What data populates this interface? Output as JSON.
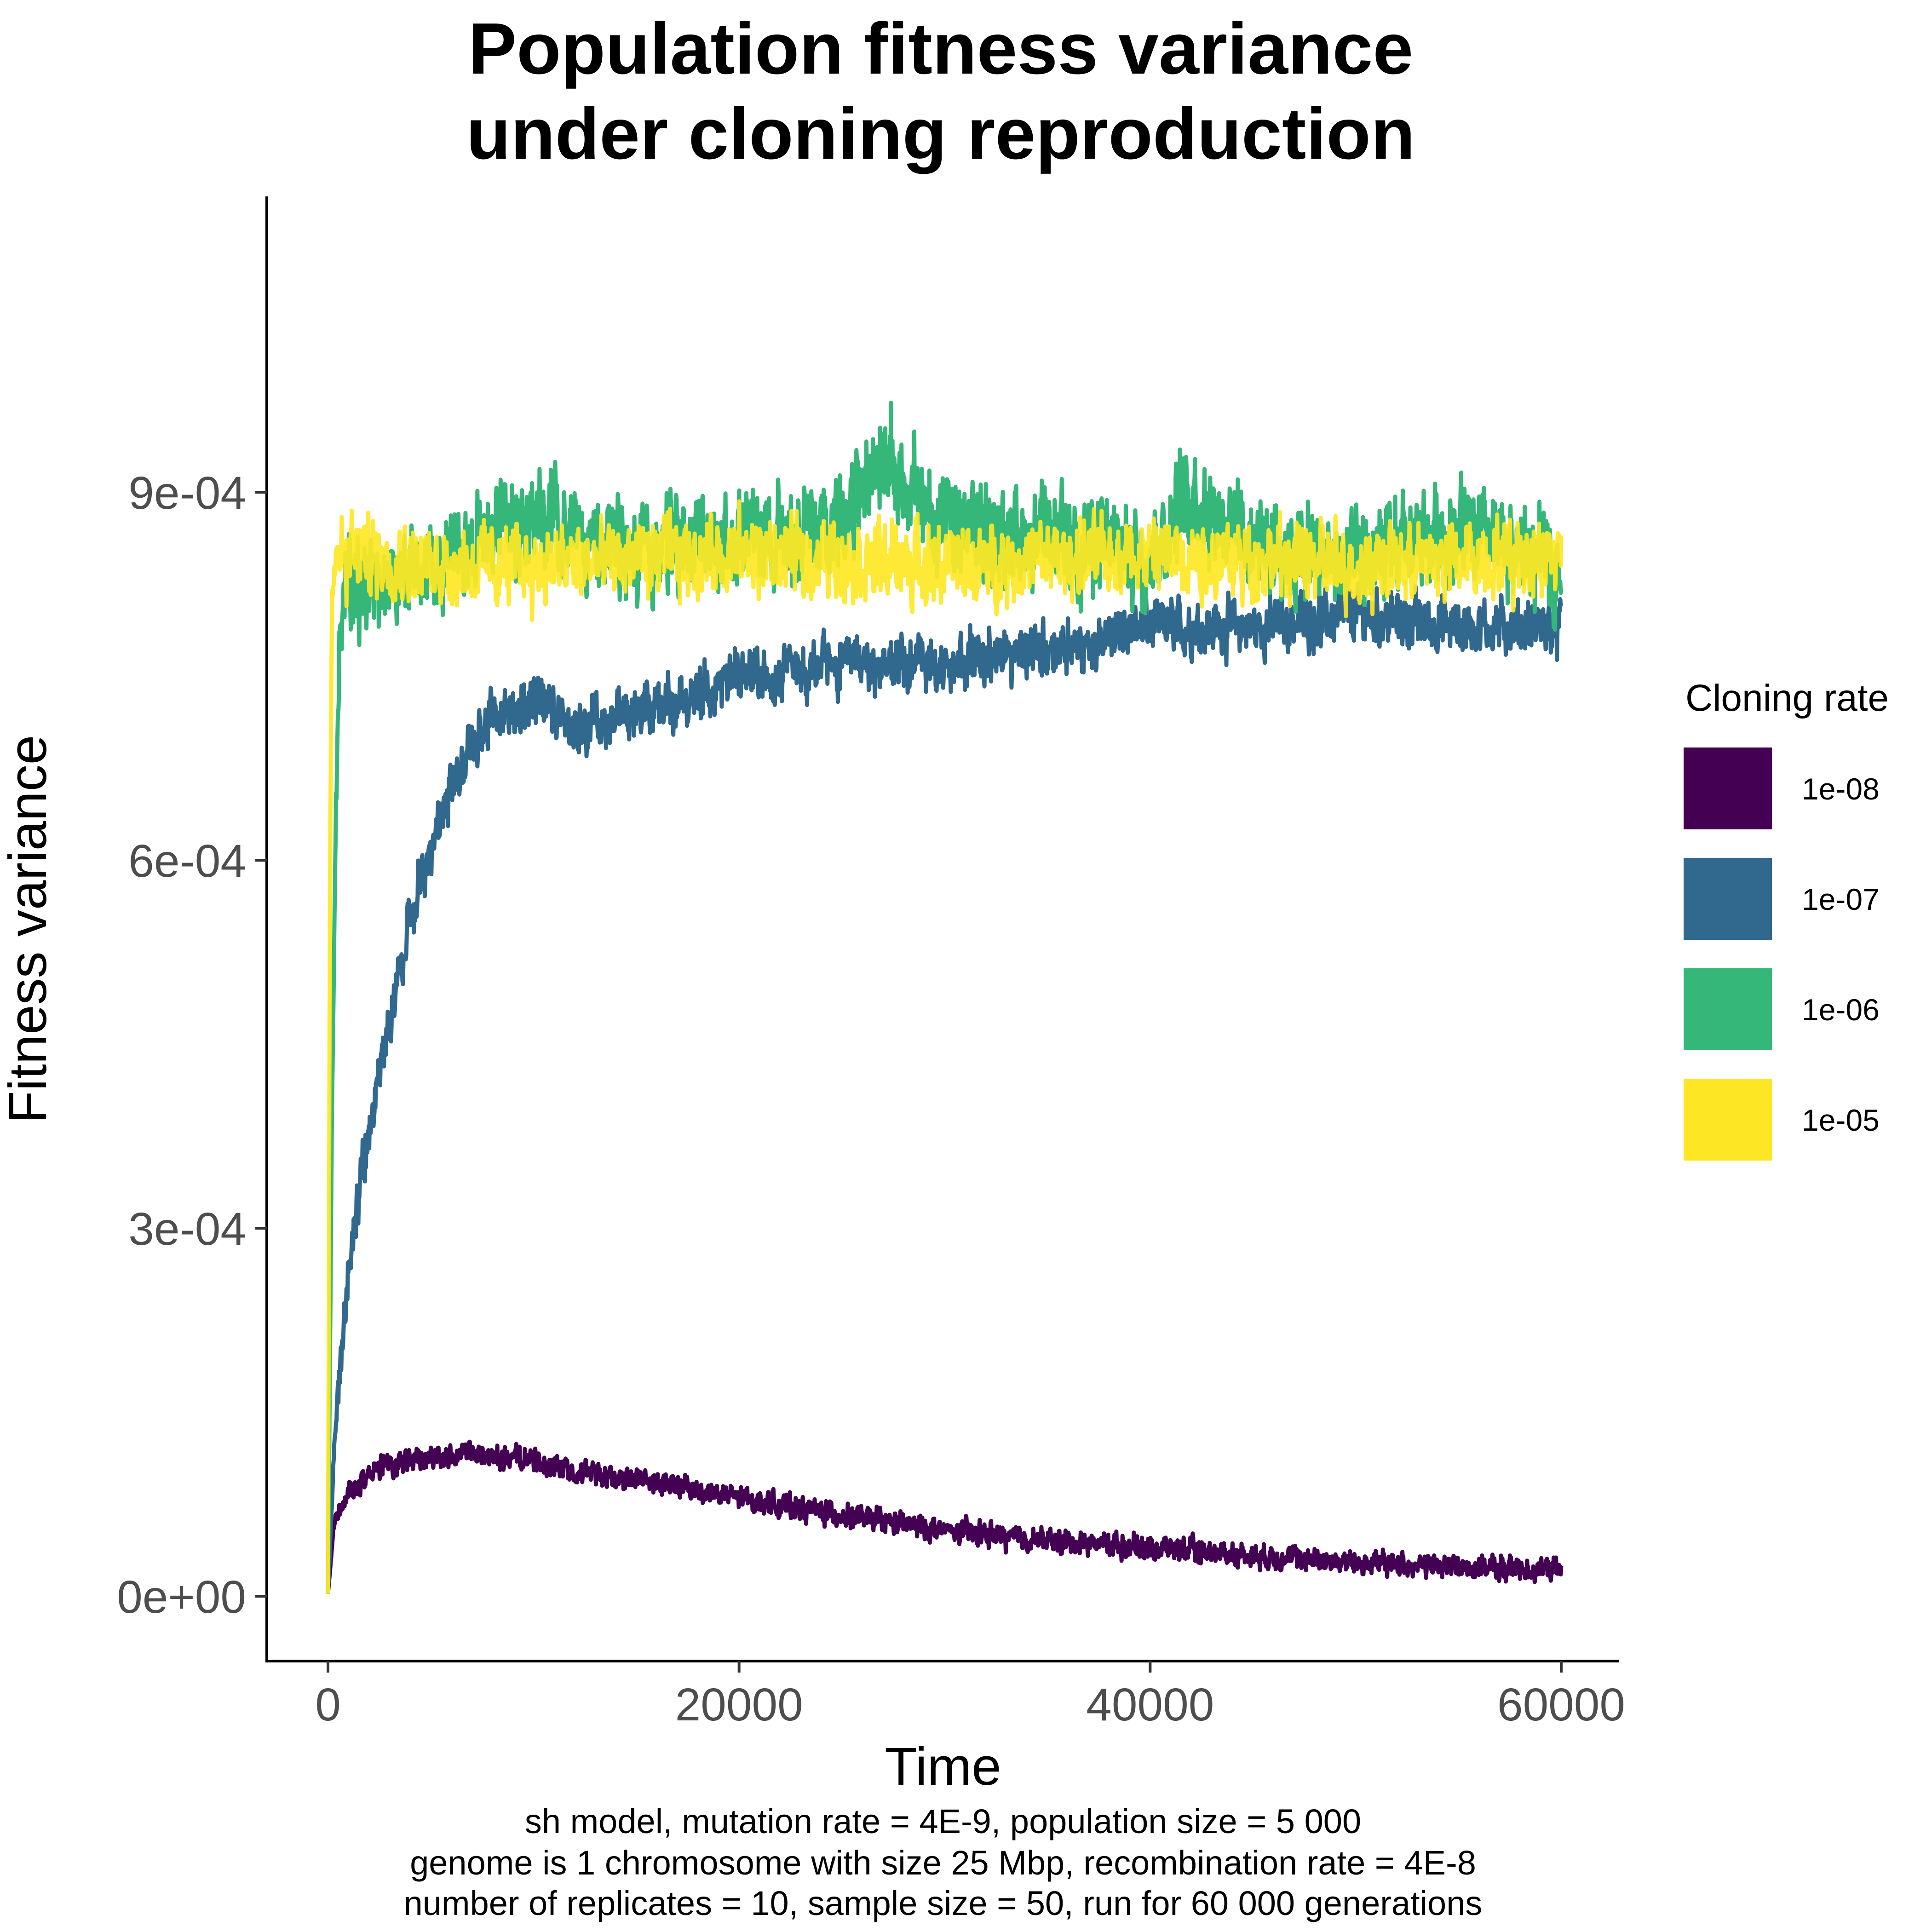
{
  "chart_data": {
    "type": "line",
    "title": [
      "Population fitness variance",
      "under cloning reproduction"
    ],
    "xlabel": "Time",
    "ylabel": "Fitness variance",
    "xlim": [
      0,
      60000
    ],
    "ylim": [
      0,
      0.00105
    ],
    "x_ticks": [
      0,
      20000,
      40000,
      60000
    ],
    "x_tick_labels": [
      "0",
      "20000",
      "40000",
      "60000"
    ],
    "y_ticks": [
      0,
      0.0003,
      0.0006,
      0.0009
    ],
    "y_tick_labels": [
      "0e+00",
      "3e-04",
      "6e-04",
      "9e-04"
    ],
    "grid": false,
    "legend": {
      "title": "Cloning rate",
      "position": "right"
    },
    "series": [
      {
        "name": "1e-08",
        "color": "#440154",
        "noise": 1.2e-05,
        "x": [
          0,
          300,
          1000,
          2000,
          3000,
          5000,
          7000,
          10000,
          12000,
          15000,
          20000,
          25000,
          30000,
          35000,
          40000,
          45000,
          50000,
          55000,
          60000
        ],
        "values": [
          2e-06,
          6e-05,
          8.5e-05,
          0.0001,
          0.000108,
          0.000112,
          0.000115,
          0.00011,
          0.000103,
          9.5e-05,
          8e-05,
          6.6e-05,
          5.4e-05,
          4.5e-05,
          4e-05,
          3.3e-05,
          2.8e-05,
          2.4e-05,
          2.1e-05
        ]
      },
      {
        "name": "1e-07",
        "color": "#31688e",
        "noise": 2.8e-05,
        "x": [
          0,
          300,
          1000,
          2000,
          3000,
          4000,
          5000,
          6000,
          7000,
          8000,
          10000,
          12000,
          15000,
          20000,
          25000,
          30000,
          35000,
          40000,
          45000,
          50000,
          55000,
          60000
        ],
        "values": [
          2e-06,
          0.00012,
          0.00027,
          0.00038,
          0.00047,
          0.00055,
          0.00061,
          0.00066,
          0.00069,
          0.00072,
          0.00073,
          0.00071,
          0.00072,
          0.00075,
          0.00076,
          0.00076,
          0.00077,
          0.00079,
          0.00079,
          0.0008,
          0.00079,
          0.00079
        ]
      },
      {
        "name": "1e-06",
        "color": "#35b779",
        "noise": 5e-05,
        "x": [
          0,
          200,
          400,
          600,
          1000,
          2000,
          5000,
          8000,
          10000,
          15000,
          20000,
          25000,
          27000,
          30000,
          35000,
          40000,
          42000,
          45000,
          50000,
          55000,
          60000
        ],
        "values": [
          2e-06,
          0.0004,
          0.00065,
          0.0008,
          0.00083,
          0.00082,
          0.00084,
          0.00087,
          0.00088,
          0.00085,
          0.00086,
          0.00088,
          0.00093,
          0.00087,
          0.00086,
          0.00085,
          0.0009,
          0.00086,
          0.00084,
          0.00087,
          0.00084
        ]
      },
      {
        "name": "1e-05",
        "color": "#fde725",
        "noise": 4e-05,
        "x": [
          0,
          100,
          200,
          400,
          1000,
          5000,
          10000,
          20000,
          30000,
          40000,
          50000,
          60000
        ],
        "values": [
          2e-06,
          0.0006,
          0.00082,
          0.00085,
          0.00085,
          0.00084,
          0.00084,
          0.00085,
          0.00084,
          0.00085,
          0.00084,
          0.00085
        ]
      }
    ],
    "caption": [
      "sh model, mutation rate = 4E-9, population size = 5 000",
      "genome is 1 chromosome with size 25 Mbp, recombination rate = 4E-8",
      "number of replicates = 10, sample size = 50, run for 60 000 generations"
    ]
  }
}
